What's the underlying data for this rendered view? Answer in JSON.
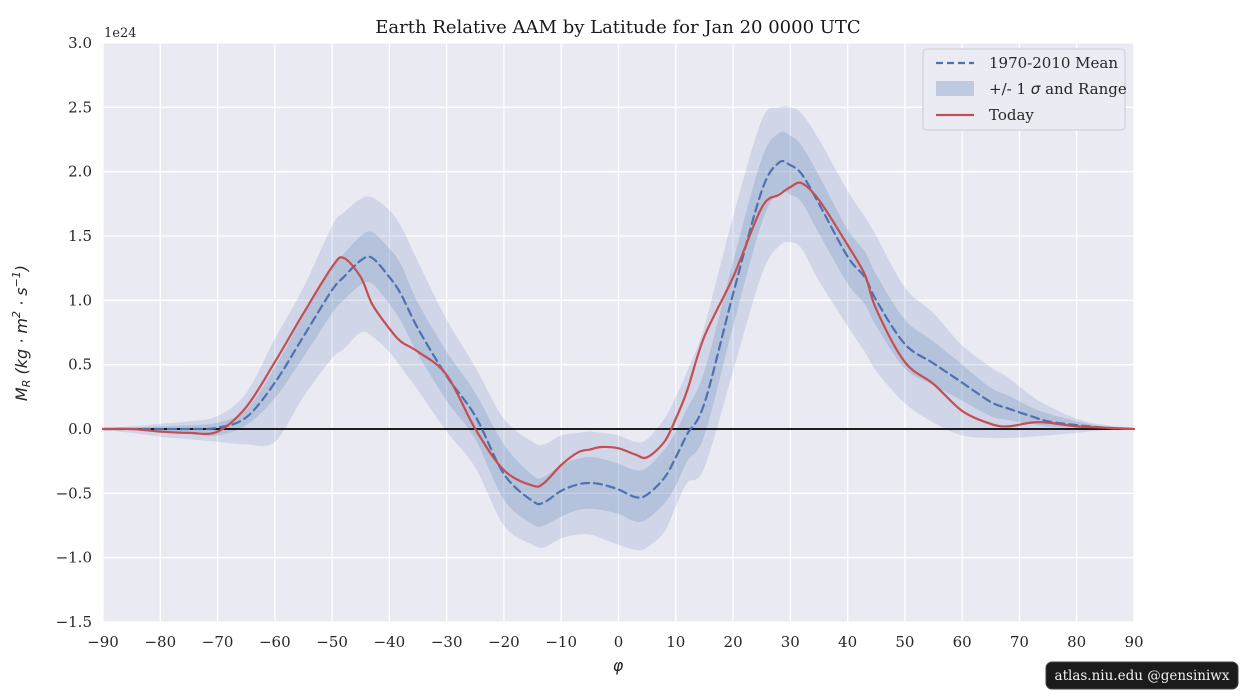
{
  "figure": {
    "title": "Earth Relative AAM by Latitude for Jan 20 0000 UTC",
    "offset_label": "1e24",
    "xlabel": "φ",
    "ylabel_parts": {
      "m": "M",
      "sub": "R",
      "rest1": " (kg · m",
      "sup1": "2",
      "rest2": " · s",
      "sup2": "−1",
      "rest3": ")"
    },
    "watermark": "atlas.niu.edu  @gensiniwx"
  },
  "legend": {
    "items": [
      {
        "label": "1970-2010 Mean",
        "type": "dashed-line",
        "color": "#4c72b0"
      },
      {
        "pre": "+/- 1 ",
        "sigma": "σ",
        "post": " and Range",
        "type": "patch",
        "color": "#c7d2e6"
      },
      {
        "label": "Today",
        "type": "line",
        "color": "#c44e52"
      }
    ]
  },
  "colors": {
    "plot_bg": "#eaeaf2",
    "grid": "#ffffff",
    "mean_line": "#4c72b0",
    "today_line": "#c44e52",
    "band_fill": "#4c72b0",
    "zero_line": "#000000",
    "watermark_bg": "#1b1b1b",
    "text": "#262626"
  },
  "axes": {
    "x_tick_labels": [
      "−90",
      "−80",
      "−70",
      "−60",
      "−50",
      "−40",
      "−30",
      "−20",
      "−10",
      "0",
      "10",
      "20",
      "30",
      "40",
      "50",
      "60",
      "70",
      "80",
      "90"
    ],
    "y_tick_labels": [
      "3.0",
      "2.5",
      "2.0",
      "1.5",
      "1.0",
      "0.5",
      "0.0",
      "−0.5",
      "−1.0",
      "−1.5"
    ]
  },
  "chart_data": {
    "type": "line",
    "title": "Earth Relative AAM by Latitude for Jan 20 0000 UTC",
    "xlabel": "φ",
    "ylabel": "M_R (kg·m²·s⁻¹)",
    "scale_note": "values in 1e24 kg·m²·s⁻¹",
    "xlim": [
      -90,
      90
    ],
    "ylim": [
      -1.5,
      3.0
    ],
    "x_ticks": [
      -90,
      -80,
      -70,
      -60,
      -50,
      -40,
      -30,
      -20,
      -10,
      0,
      10,
      20,
      30,
      40,
      50,
      60,
      70,
      80,
      90
    ],
    "y_ticks": [
      3.0,
      2.5,
      2.0,
      1.5,
      1.0,
      0.5,
      0.0,
      -0.5,
      -1.0,
      -1.5
    ],
    "grid": true,
    "legend_position": "upper right",
    "zero_line": true,
    "x": [
      -90,
      -85,
      -80,
      -75,
      -70,
      -65,
      -60,
      -55,
      -50,
      -48,
      -45,
      -43,
      -40,
      -38,
      -35,
      -30,
      -25,
      -20,
      -15,
      -13,
      -10,
      -7,
      -5,
      -3,
      0,
      3,
      5,
      8,
      10,
      12,
      15,
      20,
      25,
      28,
      30,
      32,
      35,
      40,
      43,
      45,
      50,
      55,
      60,
      65,
      68,
      72,
      75,
      80,
      85,
      90
    ],
    "series": [
      {
        "name": "1970-2010 Mean",
        "key": "mean",
        "style": "dashed",
        "color": "#4c72b0",
        "values": [
          0.0,
          0.0,
          0.0,
          0.0,
          0.01,
          0.09,
          0.36,
          0.72,
          1.08,
          1.18,
          1.31,
          1.33,
          1.18,
          1.05,
          0.78,
          0.41,
          0.1,
          -0.35,
          -0.56,
          -0.57,
          -0.48,
          -0.43,
          -0.42,
          -0.43,
          -0.47,
          -0.53,
          -0.51,
          -0.38,
          -0.22,
          -0.04,
          0.2,
          1.05,
          1.85,
          2.07,
          2.05,
          1.98,
          1.75,
          1.34,
          1.18,
          1.0,
          0.66,
          0.51,
          0.36,
          0.21,
          0.16,
          0.1,
          0.06,
          0.03,
          0.01,
          0.0
        ]
      },
      {
        "name": "Today",
        "key": "today",
        "style": "solid",
        "color": "#c44e52",
        "values": [
          0.0,
          0.0,
          -0.02,
          -0.03,
          -0.02,
          0.17,
          0.52,
          0.9,
          1.26,
          1.33,
          1.18,
          0.97,
          0.78,
          0.68,
          0.6,
          0.42,
          0.0,
          -0.32,
          -0.44,
          -0.42,
          -0.28,
          -0.18,
          -0.16,
          -0.14,
          -0.15,
          -0.2,
          -0.22,
          -0.1,
          0.08,
          0.3,
          0.72,
          1.18,
          1.72,
          1.82,
          1.88,
          1.91,
          1.78,
          1.43,
          1.2,
          0.93,
          0.52,
          0.35,
          0.14,
          0.04,
          0.02,
          0.05,
          0.05,
          0.02,
          0.01,
          0.0
        ]
      }
    ],
    "bands": [
      {
        "name": "Range",
        "key": "range",
        "opacity": 0.16,
        "upper": [
          0.01,
          0.02,
          0.04,
          0.06,
          0.1,
          0.28,
          0.7,
          1.1,
          1.58,
          1.68,
          1.79,
          1.8,
          1.7,
          1.58,
          1.3,
          0.85,
          0.48,
          0.08,
          -0.1,
          -0.12,
          -0.05,
          -0.03,
          -0.02,
          -0.03,
          -0.05,
          -0.1,
          -0.08,
          0.08,
          0.25,
          0.45,
          0.8,
          1.65,
          2.4,
          2.5,
          2.5,
          2.45,
          2.25,
          1.85,
          1.65,
          1.5,
          1.1,
          0.9,
          0.65,
          0.48,
          0.4,
          0.26,
          0.18,
          0.08,
          0.03,
          0.01
        ],
        "lower": [
          -0.01,
          -0.03,
          -0.06,
          -0.08,
          -0.1,
          -0.12,
          -0.1,
          0.25,
          0.55,
          0.62,
          0.75,
          0.72,
          0.6,
          0.48,
          0.3,
          -0.02,
          -0.3,
          -0.75,
          -0.9,
          -0.92,
          -0.85,
          -0.82,
          -0.82,
          -0.85,
          -0.9,
          -0.94,
          -0.92,
          -0.8,
          -0.6,
          -0.42,
          -0.3,
          0.45,
          1.2,
          1.42,
          1.45,
          1.4,
          1.15,
          0.8,
          0.6,
          0.45,
          0.2,
          0.05,
          -0.05,
          -0.07,
          -0.07,
          -0.06,
          -0.05,
          -0.03,
          -0.01,
          0.0
        ]
      },
      {
        "name": "+/- 1 sigma",
        "key": "sigma",
        "opacity": 0.2,
        "upper": [
          0.01,
          0.01,
          0.02,
          0.03,
          0.05,
          0.15,
          0.48,
          0.88,
          1.26,
          1.36,
          1.5,
          1.53,
          1.4,
          1.28,
          0.98,
          0.6,
          0.28,
          -0.12,
          -0.36,
          -0.37,
          -0.28,
          -0.23,
          -0.22,
          -0.23,
          -0.27,
          -0.32,
          -0.3,
          -0.16,
          -0.02,
          0.16,
          0.45,
          1.3,
          2.1,
          2.3,
          2.28,
          2.2,
          1.97,
          1.55,
          1.38,
          1.2,
          0.85,
          0.68,
          0.5,
          0.32,
          0.26,
          0.17,
          0.12,
          0.06,
          0.02,
          0.01
        ],
        "lower": [
          -0.01,
          -0.01,
          -0.02,
          -0.04,
          -0.05,
          0.03,
          0.24,
          0.56,
          0.9,
          1.0,
          1.12,
          1.13,
          0.97,
          0.84,
          0.58,
          0.22,
          -0.08,
          -0.55,
          -0.74,
          -0.75,
          -0.68,
          -0.63,
          -0.62,
          -0.63,
          -0.66,
          -0.72,
          -0.7,
          -0.58,
          -0.44,
          -0.25,
          -0.05,
          0.8,
          1.6,
          1.84,
          1.82,
          1.76,
          1.52,
          1.13,
          0.97,
          0.8,
          0.47,
          0.34,
          0.22,
          0.1,
          0.07,
          0.04,
          0.02,
          0.01,
          0.0,
          0.0
        ]
      }
    ]
  }
}
